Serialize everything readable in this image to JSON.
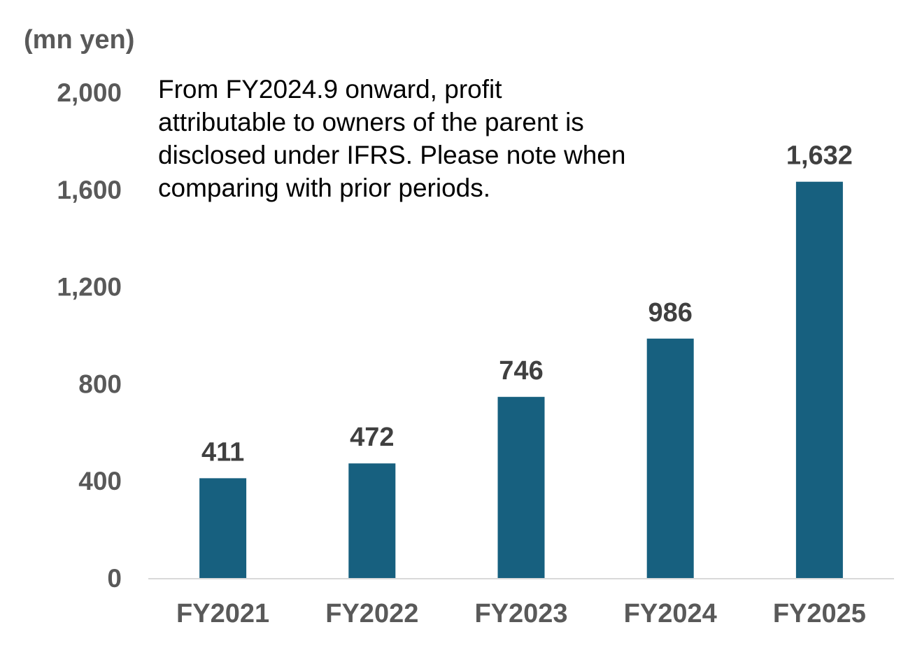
{
  "chart_data": {
    "type": "bar",
    "ylabel": "(mn yen)",
    "categories": [
      "FY2021",
      "FY2022",
      "FY2023",
      "FY2024",
      "FY2025"
    ],
    "values": [
      411,
      472,
      746,
      986,
      1632
    ],
    "data_labels": [
      "411",
      "472",
      "746",
      "986",
      "1,632"
    ],
    "ylim": [
      0,
      2000
    ],
    "yticks": [
      0,
      400,
      800,
      1200,
      1600,
      2000
    ],
    "ytick_labels": [
      "0",
      "400",
      "800",
      "1,200",
      "1,600",
      "2,000"
    ],
    "grid": false,
    "bar_color": "#17607f",
    "axis_color": "#d9d9d9",
    "annotation": [
      "From FY2024.9 onward, profit",
      "attributable to owners of the parent is",
      "disclosed under IFRS. Please note when",
      "comparing with prior periods."
    ]
  }
}
